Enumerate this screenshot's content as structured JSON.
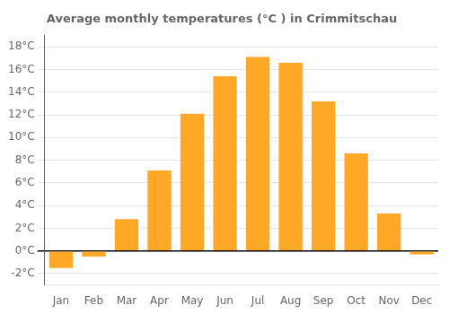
{
  "chart_data": {
    "type": "bar",
    "title": "Average monthly temperatures (°C ) in Crimmitschau",
    "categories": [
      "Jan",
      "Feb",
      "Mar",
      "Apr",
      "May",
      "Jun",
      "Jul",
      "Aug",
      "Sep",
      "Oct",
      "Nov",
      "Dec"
    ],
    "values": [
      -1.5,
      -0.5,
      2.8,
      7.1,
      12.1,
      15.4,
      17.1,
      16.6,
      13.2,
      8.6,
      3.3,
      -0.3
    ],
    "color": "#FFA726",
    "ylim": [
      -3,
      19
    ],
    "yticks": [
      {
        "value": -2,
        "label": "-2°C"
      },
      {
        "value": 0,
        "label": "0°C"
      },
      {
        "value": 2,
        "label": "2°C"
      },
      {
        "value": 4,
        "label": "4°C"
      },
      {
        "value": 6,
        "label": "6°C"
      },
      {
        "value": 8,
        "label": "8°C"
      },
      {
        "value": 10,
        "label": "10°C"
      },
      {
        "value": 12,
        "label": "12°C"
      },
      {
        "value": 14,
        "label": "14°C"
      },
      {
        "value": 16,
        "label": "16°C"
      },
      {
        "value": 18,
        "label": "18°C"
      }
    ],
    "grid": true
  }
}
